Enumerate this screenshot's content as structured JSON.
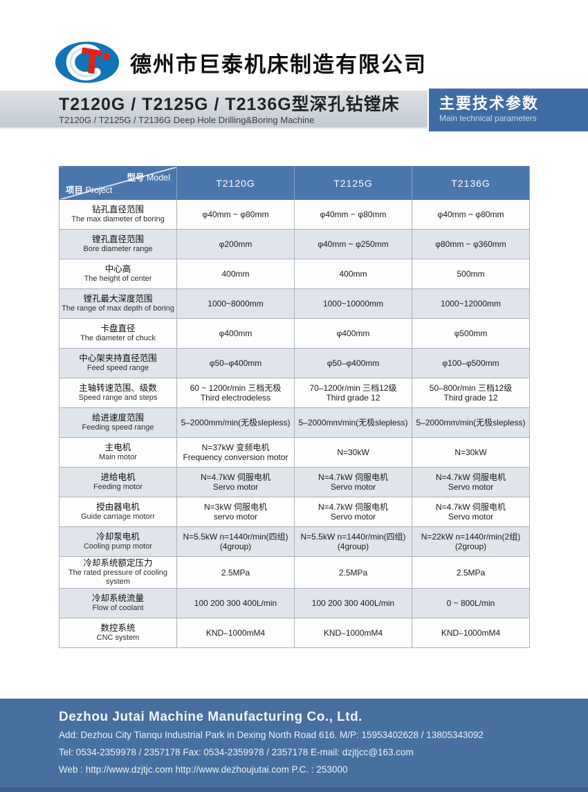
{
  "brand": {
    "logo_letters": "CT",
    "company_name_zh": "德州市巨泰机床制造有限公司"
  },
  "title_bar": {
    "title_zh": "T2120G / T2125G / T2136G型深孔钻镗床",
    "title_en": "T2120G / T2125G / T2136G Deep Hole Drilling&Boring Machine",
    "badge_zh": "主要技术参数",
    "badge_en": "Main technical parameters"
  },
  "table": {
    "corner": {
      "model_zh": "型号",
      "model_en": "Model",
      "project_zh": "项目",
      "project_en": "Project"
    },
    "columns": [
      "T2120G",
      "T2125G",
      "T2136G"
    ],
    "rows": [
      {
        "zh": "钻孔直径范围",
        "en": "The max diameter of boring",
        "cells": [
          [
            "φ40mm ~ φ80mm"
          ],
          [
            "φ40mm ~ φ80mm"
          ],
          [
            "φ40mm ~ φ80mm"
          ]
        ]
      },
      {
        "zh": "镗孔直径范围",
        "en": "Bore diameter range",
        "cells": [
          [
            "φ200mm"
          ],
          [
            "φ40mm ~ φ250mm"
          ],
          [
            "φ80mm ~ φ360mm"
          ]
        ]
      },
      {
        "zh": "中心高",
        "en": "The height of center",
        "cells": [
          [
            "400mm"
          ],
          [
            "400mm"
          ],
          [
            "500mm"
          ]
        ]
      },
      {
        "zh": "镗孔最大深度范围",
        "en": "The range of max depth of boring",
        "cells": [
          [
            "1000~8000mm"
          ],
          [
            "1000~10000mm"
          ],
          [
            "1000~12000mm"
          ]
        ]
      },
      {
        "zh": "卡盘直径",
        "en": "The diameter of chuck",
        "cells": [
          [
            "φ400mm"
          ],
          [
            "φ400mm"
          ],
          [
            "φ500mm"
          ]
        ]
      },
      {
        "zh": "中心架夹持直径范围",
        "en": "Feed speed range",
        "cells": [
          [
            "φ50–φ400mm"
          ],
          [
            "φ50–φ400mm"
          ],
          [
            "φ100–φ500mm"
          ]
        ]
      },
      {
        "zh": "主轴转速范围、级数",
        "en": "Speed range and steps",
        "cells": [
          [
            "60 ~ 1200r/min 三档无极",
            "Third electrodeless"
          ],
          [
            "70–1200r/min 三档12级",
            "Third grade 12"
          ],
          [
            "50–800r/min 三档12级",
            "Third grade 12"
          ]
        ]
      },
      {
        "zh": "给进速度范围",
        "en": "Feeding speed range",
        "cells": [
          [
            "5–2000mm/min(无极slepless)"
          ],
          [
            "5–2000mm/min(无极slepless)"
          ],
          [
            "5–2000mm/min(无极slepless)"
          ]
        ]
      },
      {
        "zh": "主电机",
        "en": "Main motor",
        "cells": [
          [
            "N=37kW 变频电机",
            "Frequency conversion motor"
          ],
          [
            "N=30kW"
          ],
          [
            "N=30kW"
          ]
        ]
      },
      {
        "zh": "进给电机",
        "en": "Feeding motor",
        "cells": [
          [
            "N=4.7kW 伺服电机",
            "Servo motor"
          ],
          [
            "N=4.7kW 伺服电机",
            "Servo motor"
          ],
          [
            "N=4.7kW 伺服电机",
            "Servo motor"
          ]
        ]
      },
      {
        "zh": "授由器电机",
        "en": "Guide carriage motorr",
        "cells": [
          [
            "N=3kW 伺服电机",
            "servo motor"
          ],
          [
            "N=4.7kW 伺服电机",
            "Servo motor"
          ],
          [
            "N=4.7kW 伺服电机",
            "Servo motor"
          ]
        ]
      },
      {
        "zh": "冷却泵电机",
        "en": "Cooling pump motor",
        "cells": [
          [
            "N=5.5kW n=1440r/min(四组)",
            "(4group)"
          ],
          [
            "N=5.5kW n=1440r/min(四组)",
            "(4group)"
          ],
          [
            "N=22kW n=1440r/min(2组)",
            "(2group)"
          ]
        ]
      },
      {
        "zh": "冷却系统额定压力",
        "en": "The rated pressure of cooling system",
        "cells": [
          [
            "2.5MPa"
          ],
          [
            "2.5MPa"
          ],
          [
            "2.5MPa"
          ]
        ]
      },
      {
        "zh": "冷却系统流量",
        "en": "Flow of coolant",
        "cells": [
          [
            "100 200 300 400L/min"
          ],
          [
            "100 200 300 400L/min"
          ],
          [
            "0 ~ 800L/min"
          ]
        ]
      },
      {
        "zh": "数控系统",
        "en": "CNC system",
        "cells": [
          [
            "KND–1000mM4"
          ],
          [
            "KND–1000mM4"
          ],
          [
            "KND–1000mM4"
          ]
        ]
      }
    ]
  },
  "footer": {
    "company_en": "Dezhou Jutai Machine Manufacturing Co., Ltd.",
    "lines": [
      "Add: Dezhou City Tianqu Industrial Park in Dexing North Road 616.   M/P: 15953402628 / 13805343092",
      "Tel: 0534-2359978 / 2357178   Fax: 0534-2359978 / 2357178    E-mail: dzjtjcc@163.com",
      "Web : http://www.dzjtjc.com   http://www.dezhoujutai.com    P.C. : 253000"
    ]
  },
  "colors": {
    "accent_blue": "#3f6da3",
    "table_header_blue": "#4a76ab",
    "row_alt": "#dfe5eb",
    "footer_blue": "#47709f",
    "logo_blue": "#1173b8",
    "logo_red": "#e2231a",
    "title_bar_gray": "#c9d0d7"
  }
}
